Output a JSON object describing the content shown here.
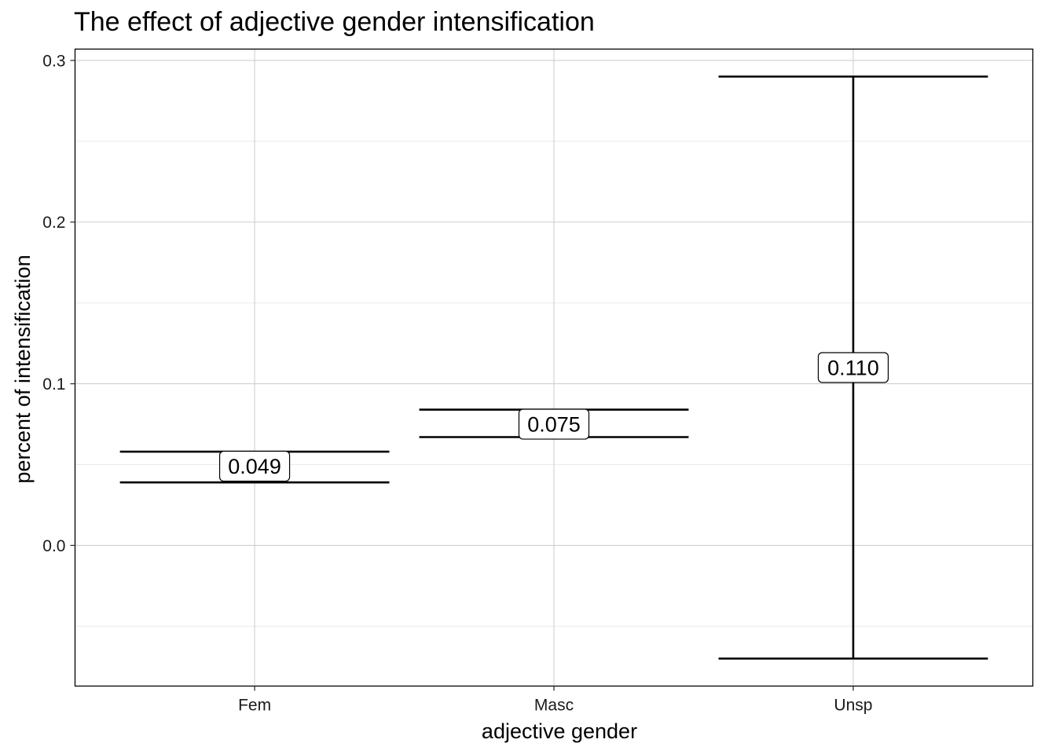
{
  "chart_data": {
    "type": "errorbar",
    "title": "The effect of adjective gender intensification",
    "xlabel": "adjective gender",
    "ylabel": "percent of intensification",
    "categories": [
      "Fem",
      "Masc",
      "Unsp"
    ],
    "estimates": [
      0.049,
      0.075,
      0.11
    ],
    "labels": [
      "0.049",
      "0.075",
      "0.110"
    ],
    "lower": [
      0.039,
      0.067,
      -0.07
    ],
    "upper": [
      0.058,
      0.084,
      0.29
    ],
    "ylim": [
      -0.087,
      0.307
    ],
    "yticks": [
      0.0,
      0.1,
      0.2,
      0.3
    ],
    "ytick_labels": [
      "0.0",
      "0.1",
      "0.2",
      "0.3"
    ],
    "grid": true
  }
}
